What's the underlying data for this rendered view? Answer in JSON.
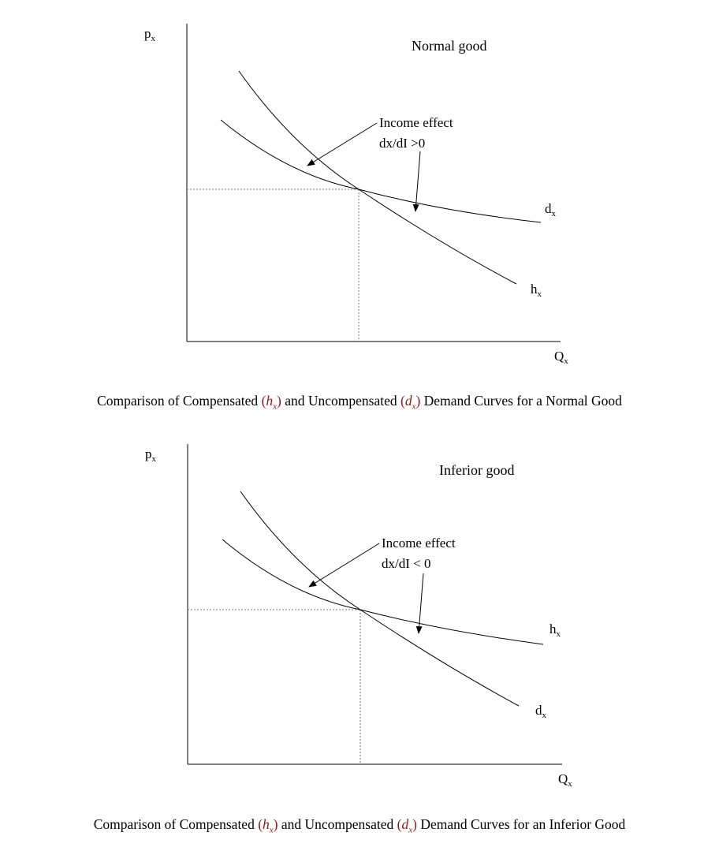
{
  "diagrams": [
    {
      "title": "Normal good",
      "y_axis": {
        "base": "p",
        "sub": "x"
      },
      "x_axis": {
        "base": "Q",
        "sub": "x"
      },
      "annotation": {
        "line1": "Income effect",
        "line2": "dx/dI >0"
      },
      "steep_curve": {
        "base": "h",
        "sub": "x"
      },
      "flat_curve": {
        "base": "d",
        "sub": "x"
      },
      "caption": {
        "before": "Comparison of Compensated ",
        "sym1": {
          "base": "h",
          "sub": "x"
        },
        "middle": " and Uncompensated ",
        "sym2": {
          "base": "d",
          "sub": "x"
        },
        "after": " Demand Curves for a Normal Good"
      }
    },
    {
      "title": "Inferior good",
      "y_axis": {
        "base": "p",
        "sub": "x"
      },
      "x_axis": {
        "base": "Q",
        "sub": "x"
      },
      "annotation": {
        "line1": "Income effect",
        "line2": "dx/dI < 0"
      },
      "steep_curve": {
        "base": "d",
        "sub": "x"
      },
      "flat_curve": {
        "base": "h",
        "sub": "x"
      },
      "caption": {
        "before": "Comparison of Compensated ",
        "sym1": {
          "base": "h",
          "sub": "x"
        },
        "middle": " and Uncompensated ",
        "sym2": {
          "base": "d",
          "sub": "x"
        },
        "after": " Demand Curves for an Inferior Good"
      }
    }
  ]
}
